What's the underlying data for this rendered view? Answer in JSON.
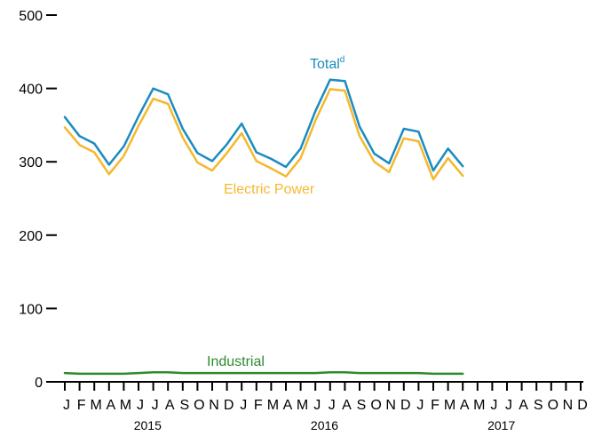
{
  "chart_data": {
    "type": "line",
    "ylim": [
      0,
      500
    ],
    "yticks": [
      0,
      100,
      200,
      300,
      400,
      500
    ],
    "month_labels": [
      "J",
      "F",
      "M",
      "A",
      "M",
      "J",
      "J",
      "A",
      "S",
      "O",
      "N",
      "D",
      "J",
      "F",
      "M",
      "A",
      "M",
      "J",
      "J",
      "A",
      "S",
      "O",
      "N",
      "D",
      "J",
      "F",
      "M",
      "A",
      "M",
      "J",
      "J",
      "A",
      "S",
      "O",
      "N",
      "D"
    ],
    "year_labels": [
      "2015",
      "2016",
      "2017"
    ],
    "series": [
      {
        "name": "Total",
        "superscript": "d",
        "color": "#1a8cc0",
        "values": [
          361,
          335,
          325,
          296,
          321,
          362,
          400,
          392,
          345,
          312,
          301,
          324,
          352,
          313,
          304,
          293,
          318,
          369,
          412,
          410,
          348,
          311,
          298,
          345,
          341,
          288,
          318,
          294
        ]
      },
      {
        "name": "Electric Power",
        "color": "#f5b82e",
        "values": [
          347,
          323,
          313,
          283,
          308,
          349,
          386,
          379,
          333,
          299,
          288,
          312,
          339,
          301,
          291,
          280,
          305,
          356,
          399,
          397,
          335,
          300,
          286,
          332,
          328,
          276,
          305,
          281
        ]
      },
      {
        "name": "Industrial",
        "color": "#2e8b2e",
        "values": [
          12,
          11,
          11,
          11,
          11,
          12,
          13,
          13,
          12,
          12,
          12,
          12,
          12,
          12,
          12,
          12,
          12,
          12,
          13,
          13,
          12,
          12,
          12,
          12,
          12,
          11,
          11,
          11
        ]
      }
    ]
  }
}
